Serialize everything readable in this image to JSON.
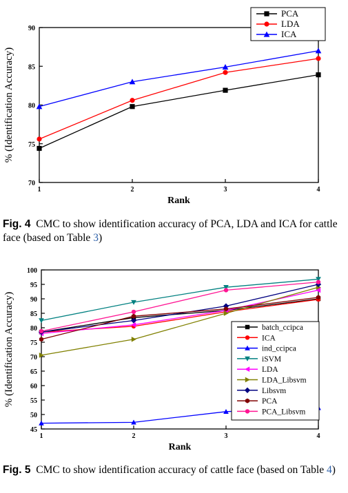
{
  "chart_data": [
    {
      "type": "line",
      "x": [
        1,
        2,
        3,
        4
      ],
      "xlabel": "Rank",
      "ylabel": "% (Identification Accuracy)",
      "xlim": [
        1,
        4
      ],
      "ylim": [
        70,
        90
      ],
      "xticks": [
        "1",
        "2",
        "3",
        "4"
      ],
      "yticks": [
        "70",
        "75",
        "80",
        "85",
        "90"
      ],
      "grid": false,
      "legend_position": "top-right",
      "series": [
        {
          "name": "PCA",
          "values": [
            74.4,
            79.8,
            81.9,
            83.9
          ],
          "color": "#000000",
          "marker": "square"
        },
        {
          "name": "LDA",
          "values": [
            75.6,
            80.6,
            84.2,
            86.0
          ],
          "color": "#ff0000",
          "marker": "circle"
        },
        {
          "name": "ICA",
          "values": [
            79.8,
            83.0,
            84.9,
            87.0
          ],
          "color": "#0000ff",
          "marker": "triangle-up"
        }
      ]
    },
    {
      "type": "line",
      "x": [
        1,
        2,
        3,
        4
      ],
      "xlabel": "Rank",
      "ylabel": "% (Identification Accuracy)",
      "xlim": [
        1,
        4
      ],
      "ylim": [
        45,
        100
      ],
      "xticks": [
        "1",
        "2",
        "3",
        "4"
      ],
      "yticks": [
        "45",
        "50",
        "55",
        "60",
        "65",
        "70",
        "75",
        "80",
        "85",
        "90",
        "95",
        "100"
      ],
      "grid": false,
      "legend_position": "right",
      "series": [
        {
          "name": "batch_ccipca",
          "values": [
            78.5,
            83.5,
            86.0,
            90.0
          ],
          "color": "#000000",
          "marker": "square"
        },
        {
          "name": "ICA",
          "values": [
            78.5,
            80.5,
            85.5,
            89.8
          ],
          "color": "#ff0000",
          "marker": "circle"
        },
        {
          "name": "ind_ccipca",
          "values": [
            47.0,
            47.3,
            51.0,
            52.3
          ],
          "color": "#0000ff",
          "marker": "triangle-up"
        },
        {
          "name": "iSVM",
          "values": [
            82.5,
            88.8,
            94.0,
            96.8
          ],
          "color": "#008080",
          "marker": "triangle-down"
        },
        {
          "name": "LDA",
          "values": [
            78.0,
            81.0,
            86.0,
            93.0
          ],
          "color": "#ff00ff",
          "marker": "triangle-left"
        },
        {
          "name": "LDA_Libsvm",
          "values": [
            70.5,
            76.0,
            85.0,
            94.0
          ],
          "color": "#808000",
          "marker": "triangle-right"
        },
        {
          "name": "Libsvm",
          "values": [
            78.5,
            82.5,
            87.5,
            95.0
          ],
          "color": "#000080",
          "marker": "diamond"
        },
        {
          "name": "PCA",
          "values": [
            76.0,
            84.0,
            86.5,
            90.5
          ],
          "color": "#800000",
          "marker": "hexagon"
        },
        {
          "name": "PCA_Libsvm",
          "values": [
            78.8,
            85.5,
            93.0,
            95.8
          ],
          "color": "#ff1493",
          "marker": "circle"
        }
      ]
    }
  ],
  "captions": {
    "fig4": {
      "label": "Fig. 4",
      "text": "CMC to show identification accuracy of PCA, LDA and ICA for cattle face (based on Table ",
      "ref": "3",
      "end": ")"
    },
    "fig5": {
      "label": "Fig. 5",
      "text": "CMC to show identification accuracy of cattle face (based on Table ",
      "ref": "4",
      "end": ")"
    }
  }
}
